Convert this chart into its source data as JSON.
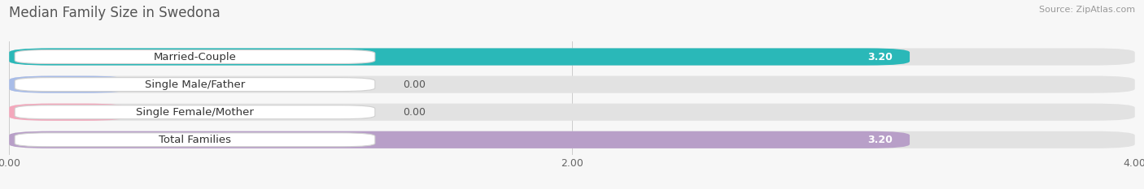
{
  "title": "Median Family Size in Swedona",
  "source": "Source: ZipAtlas.com",
  "categories": [
    "Married-Couple",
    "Single Male/Father",
    "Single Female/Mother",
    "Total Families"
  ],
  "values": [
    3.2,
    0.0,
    0.0,
    3.2
  ],
  "bar_colors": [
    "#2ab8b8",
    "#a8bce8",
    "#f4a8bc",
    "#b89fc8"
  ],
  "background_color": "#f7f7f7",
  "bar_bg_color": "#e2e2e2",
  "xlim": [
    0,
    4.0
  ],
  "xticks": [
    0.0,
    2.0,
    4.0
  ],
  "xtick_labels": [
    "0.00",
    "2.00",
    "4.00"
  ],
  "label_fontsize": 9.5,
  "value_fontsize": 9,
  "title_fontsize": 12,
  "source_fontsize": 8
}
